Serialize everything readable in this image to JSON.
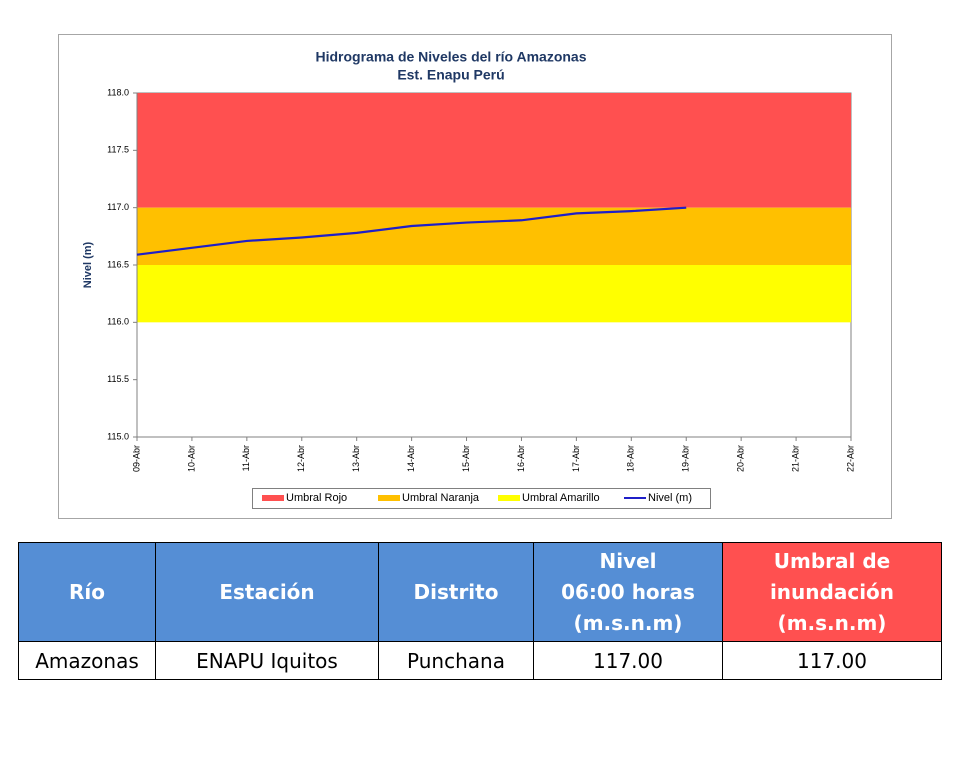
{
  "chart_data": {
    "type": "line",
    "title": [
      "Hidrograma de Niveles del río Amazonas",
      "Est. Enapu Perú"
    ],
    "y_label": "Nivel (m)",
    "categories": [
      "09-Abr",
      "10-Abr",
      "11-Abr",
      "12-Abr",
      "13-Abr",
      "14-Abr",
      "15-Abr",
      "16-Abr",
      "17-Abr",
      "18-Abr",
      "19-Abr",
      "20-Abr",
      "21-Abr",
      "22-Abr"
    ],
    "bands": [
      {
        "name": "Umbral Rojo",
        "color": "#ff5050",
        "range": [
          117,
          118
        ]
      },
      {
        "name": "Umbral Naranja",
        "color": "#ffc000",
        "range": [
          116.5,
          117
        ]
      },
      {
        "name": "Umbral Amarillo",
        "color": "#ffff00",
        "range": [
          116,
          116.5
        ]
      }
    ],
    "series": [
      {
        "name": "Nivel (m)",
        "color": "#1f1fc8",
        "values": [
          116.59,
          116.65,
          116.71,
          116.74,
          116.78,
          116.84,
          116.87,
          116.89,
          116.95,
          116.97,
          117.0,
          null,
          null,
          null
        ]
      }
    ],
    "ylim": [
      115,
      118
    ],
    "yticks": [
      {
        "value": 115,
        "label": "115.0"
      },
      {
        "value": 115.5,
        "label": "115.5"
      },
      {
        "value": 116,
        "label": "116.0"
      },
      {
        "value": 116.5,
        "label": "116.5"
      },
      {
        "value": 117,
        "label": "117.0"
      },
      {
        "value": 117.5,
        "label": "117.5"
      },
      {
        "value": 118,
        "label": "118.0"
      }
    ],
    "grid": false,
    "legend": "bottom"
  },
  "table": {
    "header": [
      "Río",
      "Estación",
      "Distrito",
      "Nivel\n06:00 horas\n(m.s.n.m)",
      "Umbral de\ninundación\n(m.s.n.m)"
    ],
    "rows": [
      [
        "Amazonas",
        "ENAPU Iquitos",
        "Punchana",
        "117.00",
        "117.00"
      ]
    ]
  }
}
